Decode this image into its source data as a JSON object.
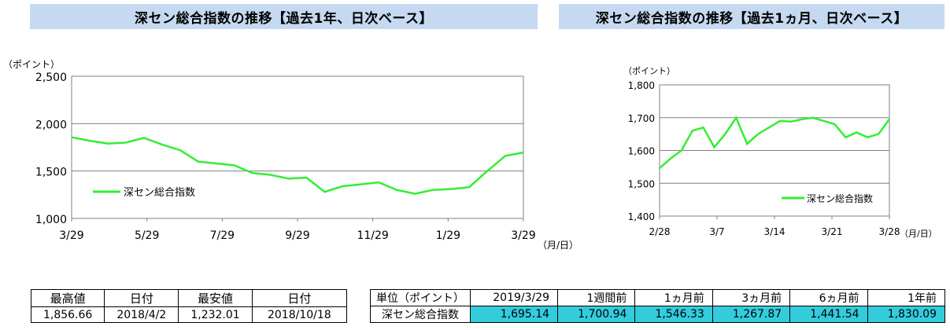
{
  "chart_data": [
    {
      "type": "line",
      "title": "深セン総合指数の推移【過去1年、日次ベース】",
      "ylabel": "（ポイント）",
      "xlabel": "（月/日）",
      "ylim": [
        1000,
        2500
      ],
      "yticks": [
        "1,000",
        "1,500",
        "2,000",
        "2,500"
      ],
      "categories": [
        "3/29",
        "5/29",
        "7/29",
        "9/29",
        "11/29",
        "1/29",
        "3/29"
      ],
      "legend": "top-left-inside",
      "grid": true,
      "series": [
        {
          "name": "深セン総合指数",
          "color": "#33ee33",
          "x": [
            0,
            0.04,
            0.08,
            0.12,
            0.16,
            0.2,
            0.24,
            0.28,
            0.32,
            0.36,
            0.4,
            0.44,
            0.48,
            0.52,
            0.56,
            0.6,
            0.64,
            0.68,
            0.72,
            0.76,
            0.8,
            0.84,
            0.88,
            0.92,
            0.96,
            1
          ],
          "y": [
            1856,
            1820,
            1790,
            1800,
            1850,
            1780,
            1720,
            1600,
            1580,
            1560,
            1480,
            1460,
            1420,
            1430,
            1280,
            1340,
            1360,
            1380,
            1300,
            1260,
            1300,
            1310,
            1330,
            1500,
            1660,
            1695
          ]
        }
      ]
    },
    {
      "type": "line",
      "title": "深セン総合指数の推移【過去1ヵ月、日次ベース】",
      "ylabel": "（ポイント）",
      "xlabel": "（月/日）",
      "ylim": [
        1400,
        1800
      ],
      "yticks": [
        "1,400",
        "1,500",
        "1,600",
        "1,700",
        "1,800"
      ],
      "categories": [
        "2/28",
        "3/7",
        "3/14",
        "3/21",
        "3/28"
      ],
      "legend": "bottom-right-inside",
      "grid": true,
      "series": [
        {
          "name": "深セン総合指数",
          "color": "#33ee33",
          "x": [
            0,
            1,
            2,
            3,
            4,
            5,
            6,
            7,
            8,
            9,
            10,
            11,
            12,
            13,
            14,
            15,
            16,
            17,
            18,
            19,
            20,
            21
          ],
          "y": [
            1546,
            1575,
            1600,
            1660,
            1670,
            1610,
            1650,
            1700,
            1620,
            1650,
            1670,
            1690,
            1688,
            1695,
            1700,
            1690,
            1680,
            1640,
            1655,
            1640,
            1650,
            1695
          ]
        }
      ]
    }
  ],
  "stats_table": {
    "headers": [
      "最高値",
      "日付",
      "最安値",
      "日付"
    ],
    "values": [
      "1,856.66",
      "2018/4/2",
      "1,232.01",
      "2018/10/18"
    ]
  },
  "compare_table": {
    "headers": [
      "単位（ポイント）",
      "2019/3/29",
      "1週間前",
      "1ヵ月前",
      "3ヵ月前",
      "6ヵ月前",
      "1年前"
    ],
    "row_label": "深セン総合指数",
    "values": [
      "1,695.14",
      "1,700.94",
      "1,546.33",
      "1,267.87",
      "1,441.54",
      "1,830.09"
    ],
    "highlight_color": "#33ccdd"
  }
}
